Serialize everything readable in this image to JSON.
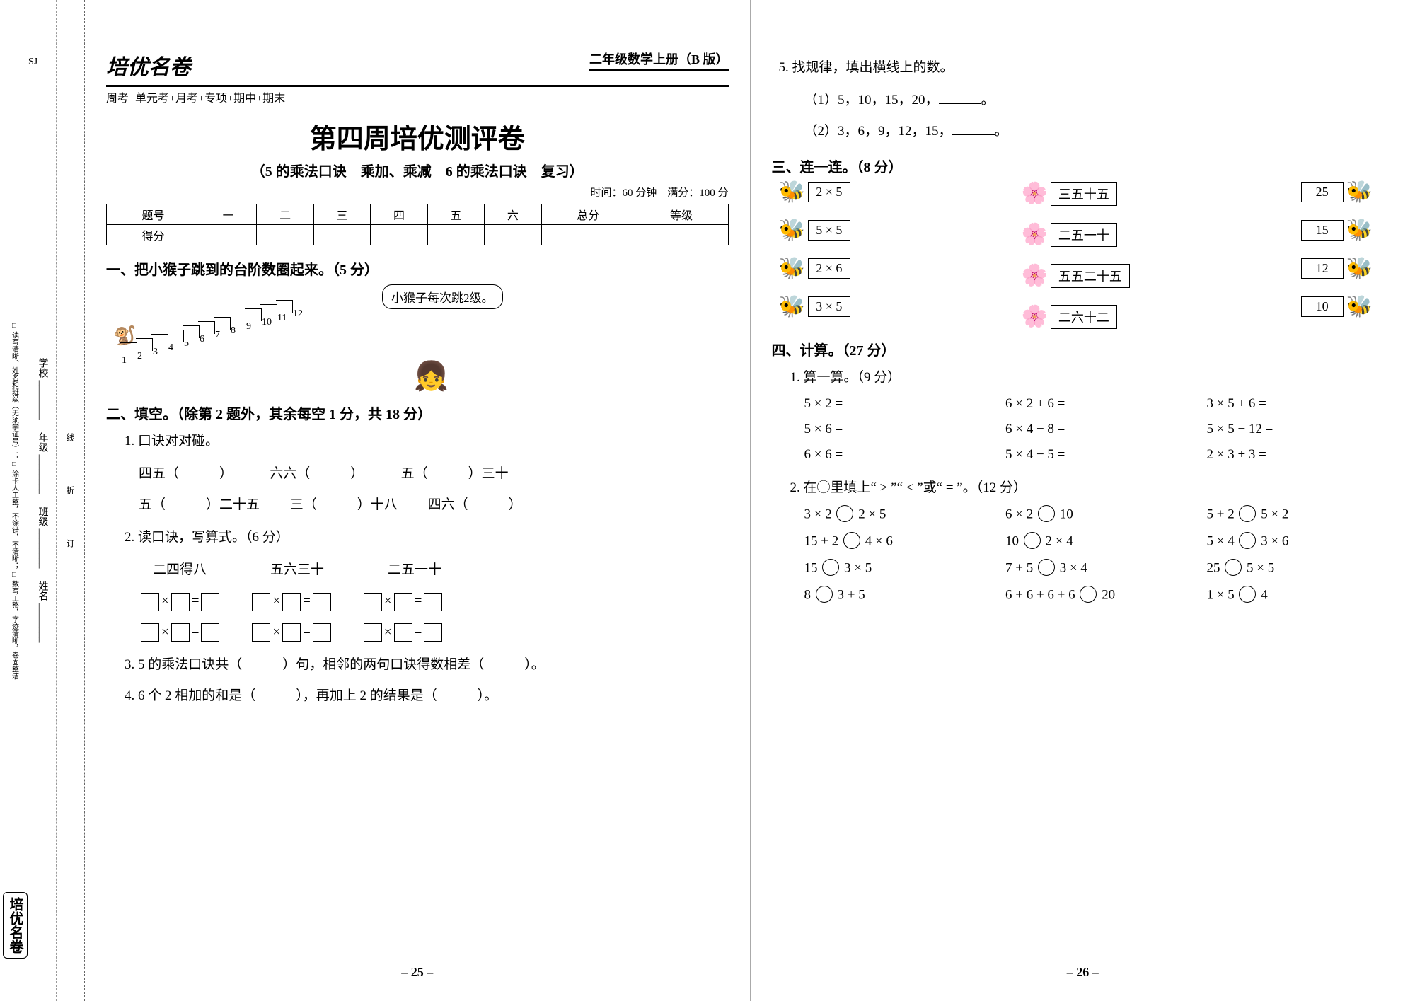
{
  "strip": {
    "sj": "SJ",
    "hints": "□ 读写清晰、姓名和班级（无须学证号）；\n□ 涂卡人工整，不涂错，不清晰；\n□ 数写工整，字迹清晰，卷面整洁",
    "school": "学校 ________",
    "grade": "年级 ________",
    "class": "班级 ________",
    "name": "姓名 ________",
    "logo": "培优名卷",
    "logo_sub": "周考·单元考·月考·专项·期中·期末",
    "cut": "线",
    "fold": "折",
    "sew": "订"
  },
  "left": {
    "brand": "培优名卷",
    "right_meta": "二年级数学上册（B 版）",
    "subhead": "周考+单元考+月考+专项+期中+期末",
    "title": "第四周培优测评卷",
    "title_sub": "（5 的乘法口诀　乘加、乘减　6 的乘法口诀　复习）",
    "time": "时间：60 分钟　满分：100 分",
    "score_head": [
      "题号",
      "一",
      "二",
      "三",
      "四",
      "五",
      "六",
      "总分",
      "等级"
    ],
    "score_row": "得分",
    "s1": "一、把小猴子跳到的台阶数圈起来。（5 分）",
    "steps": [
      "1",
      "2",
      "3",
      "4",
      "5",
      "6",
      "7",
      "8",
      "9",
      "10",
      "11",
      "12"
    ],
    "callout": "小猴子每次跳2级。",
    "s2": "二、填空。（除第 2 题外，其余每空 1 分，共 18 分）",
    "q1": "1. 口诀对对碰。",
    "q1_line1a": "四五（　　　）",
    "q1_line1b": "六六（　　　）",
    "q1_line1c": "五（　　　）三十",
    "q1_line2a": "五（　　　）二十五",
    "q1_line2b": "三（　　　）十八",
    "q1_line2c": "四六（　　　）",
    "q2": "2. 读口诀，写算式。（6 分）",
    "q2h": [
      "二四得八",
      "五六三十",
      "二五一十"
    ],
    "q3": "3. 5 的乘法口诀共（　　　）句，相邻的两句口诀得数相差（　　　）。",
    "q4": "4. 6 个 2 相加的和是（　　　），再加上 2 的结果是（　　　）。",
    "pagenum": "– 25 –"
  },
  "right": {
    "q5": "5. 找规律，填出横线上的数。",
    "q5a": "（1）5，10，15，20，",
    "q5b": "（2）3，6，9，12，15，",
    "s3": "三、连一连。（8 分）",
    "colA": [
      "2 × 5",
      "5 × 5",
      "2 × 6",
      "3 × 5"
    ],
    "colB": [
      "三五十五",
      "二五一十",
      "五五二十五",
      "二六十二"
    ],
    "colC": [
      "25",
      "15",
      "12",
      "10"
    ],
    "s4": "四、计算。（27 分）",
    "q41": "1. 算一算。（9 分）",
    "calc1": [
      "5 × 2 =",
      "6 × 2 + 6 =",
      "3 × 5 + 6 =",
      "5 × 6 =",
      "6 × 4 − 8 =",
      "5 × 5 − 12 =",
      "6 × 6 =",
      "5 × 4 − 5 =",
      "2 × 3 + 3 ="
    ],
    "q42": "2. 在◯里填上“ > ”“ < ”或“ = ”。（12 分）",
    "comp": [
      [
        "3 × 2",
        "2 × 5"
      ],
      [
        "6 × 2",
        "10"
      ],
      [
        "5 + 2",
        "5 × 2"
      ],
      [
        "15 + 2",
        "4 × 6"
      ],
      [
        "10",
        "2 × 4"
      ],
      [
        "5 × 4",
        "3 × 6"
      ],
      [
        "15",
        "3 × 5"
      ],
      [
        "7 + 5",
        "3 × 4"
      ],
      [
        "25",
        "5 × 5"
      ],
      [
        "8",
        "3 + 5"
      ],
      [
        "6 + 6 + 6 + 6",
        "20"
      ],
      [
        "1 × 5",
        "4"
      ]
    ],
    "pagenum": "– 26 –"
  }
}
